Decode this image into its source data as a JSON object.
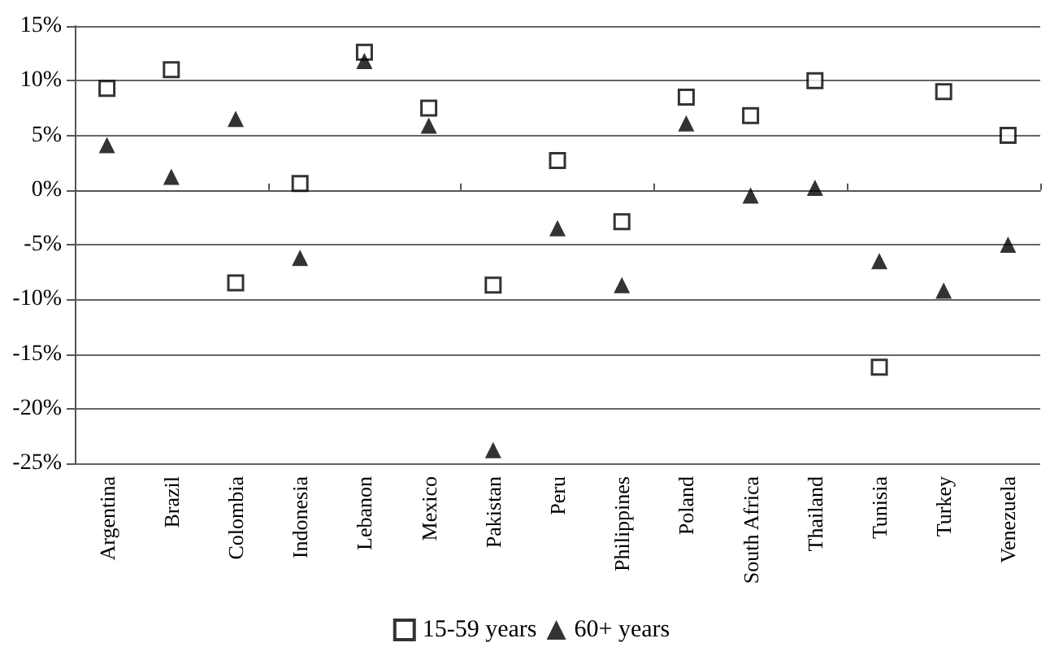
{
  "chart_data": {
    "type": "scatter",
    "categories": [
      "Argentina",
      "Brazil",
      "Colombia",
      "Indonesia",
      "Lebanon",
      "Mexico",
      "Pakistan",
      "Peru",
      "Philippines",
      "Poland",
      "South Africa",
      "Thailand",
      "Tunisia",
      "Turkey",
      "Venezuela"
    ],
    "series": [
      {
        "name": "15-59 years",
        "color": "#000000",
        "marker": "square",
        "values": [
          9.3,
          11.0,
          -8.5,
          0.6,
          12.6,
          7.5,
          -8.7,
          2.7,
          -2.9,
          8.5,
          6.8,
          10.0,
          -16.2,
          9.0,
          5.0
        ]
      },
      {
        "name": "60+ years",
        "color": "#000000",
        "marker": "triangle",
        "values": [
          4.1,
          1.2,
          6.5,
          -6.2,
          11.8,
          5.9,
          -23.8,
          -3.5,
          -8.7,
          6.1,
          -0.5,
          0.2,
          -6.5,
          -9.2,
          -5.0
        ]
      }
    ],
    "ylim": [
      -25,
      15
    ],
    "yticks": [
      {
        "value": -25,
        "label": "-25%"
      },
      {
        "value": -20,
        "label": "-20%"
      },
      {
        "value": -15,
        "label": "-15%"
      },
      {
        "value": -10,
        "label": "-10%"
      },
      {
        "value": -5,
        "label": "-5%"
      },
      {
        "value": 0,
        "label": "0%"
      },
      {
        "value": 5,
        "label": "5%"
      },
      {
        "value": 10,
        "label": "10%"
      },
      {
        "value": 15,
        "label": "15%"
      }
    ],
    "grid": "y",
    "legend": "bottom"
  }
}
